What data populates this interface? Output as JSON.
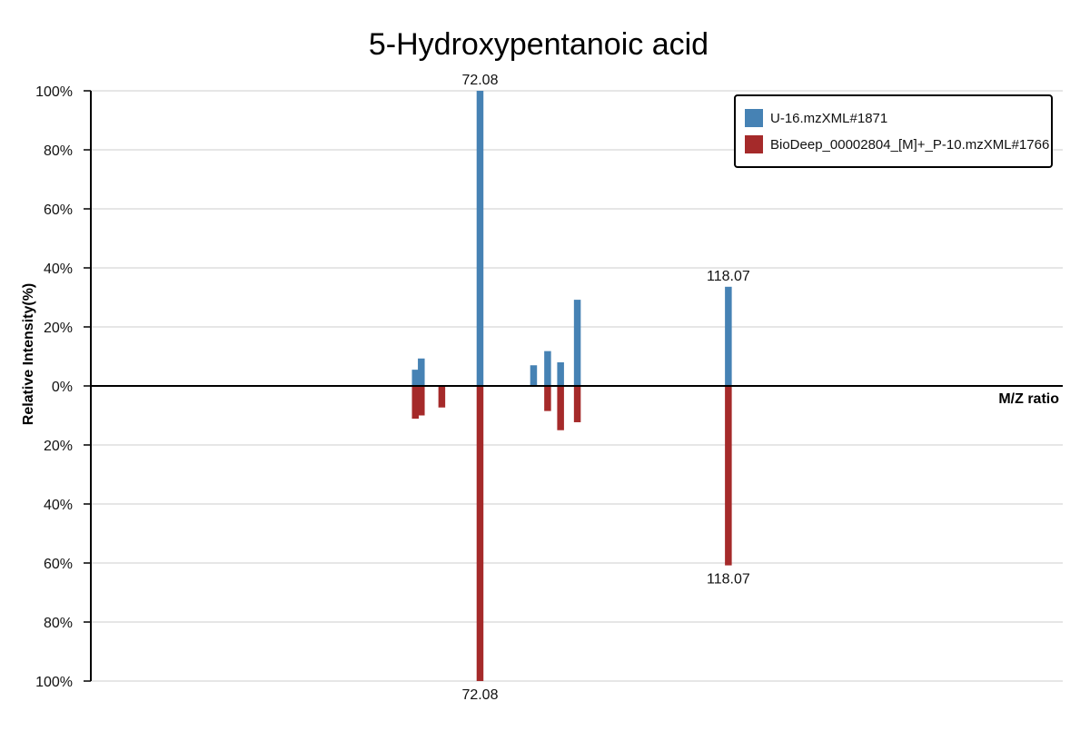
{
  "chart_data": {
    "type": "bar",
    "title": "5-Hydroxypentanoic acid",
    "xlabel": "M/Z ratio",
    "ylabel": "Relative Intensity(%)",
    "ylim": [
      -100,
      100
    ],
    "xlim": [
      0,
      180
    ],
    "grid": true,
    "legend_position": "top-right",
    "y_ticks": [
      {
        "value": 100,
        "label": "100%"
      },
      {
        "value": 80,
        "label": "80%"
      },
      {
        "value": 60,
        "label": "60%"
      },
      {
        "value": 40,
        "label": "40%"
      },
      {
        "value": 20,
        "label": "20%"
      },
      {
        "value": 0,
        "label": "0%"
      },
      {
        "value": -20,
        "label": "20%"
      },
      {
        "value": -40,
        "label": "40%"
      },
      {
        "value": -60,
        "label": "60%"
      },
      {
        "value": -80,
        "label": "80%"
      },
      {
        "value": -100,
        "label": "100%"
      }
    ],
    "series": [
      {
        "name": "U-16.mzXML#1871",
        "color": "#4682b4",
        "direction": "up",
        "points": [
          {
            "mz": 60.1,
            "intensity": 5.5
          },
          {
            "mz": 61.2,
            "intensity": 9.3
          },
          {
            "mz": 72.08,
            "intensity": 100,
            "label": "72.08"
          },
          {
            "mz": 82.0,
            "intensity": 7.0
          },
          {
            "mz": 84.6,
            "intensity": 11.8
          },
          {
            "mz": 87.0,
            "intensity": 8.0
          },
          {
            "mz": 90.1,
            "intensity": 29.2
          },
          {
            "mz": 118.07,
            "intensity": 33.6,
            "label": "118.07"
          }
        ]
      },
      {
        "name": "BioDeep_00002804_[M]+_P-10.mzXML#1766",
        "color": "#a52a2a",
        "direction": "down",
        "points": [
          {
            "mz": 60.1,
            "intensity": 11.1
          },
          {
            "mz": 61.2,
            "intensity": 10.0
          },
          {
            "mz": 65.0,
            "intensity": 7.3
          },
          {
            "mz": 72.08,
            "intensity": 100,
            "label": "72.08"
          },
          {
            "mz": 84.6,
            "intensity": 8.5
          },
          {
            "mz": 87.0,
            "intensity": 15.0
          },
          {
            "mz": 90.1,
            "intensity": 12.3
          },
          {
            "mz": 118.07,
            "intensity": 60.8,
            "label": "118.07"
          }
        ]
      }
    ]
  }
}
